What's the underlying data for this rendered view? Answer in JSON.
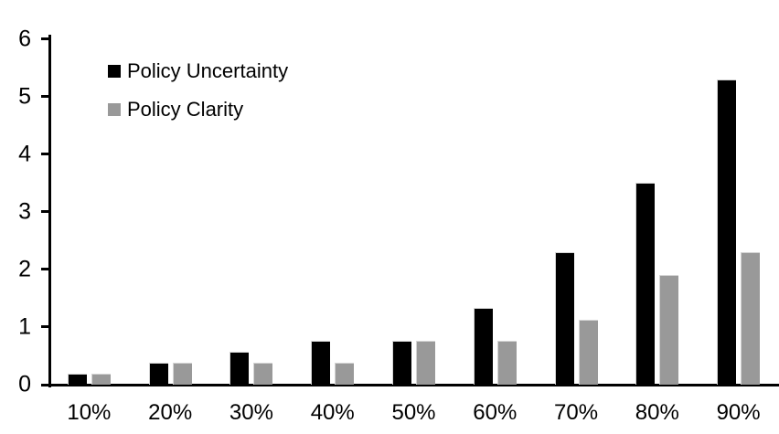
{
  "chart_data": {
    "type": "bar",
    "title": "",
    "xlabel": "",
    "ylabel": "",
    "categories": [
      "10%",
      "20%",
      "30%",
      "40%",
      "50%",
      "60%",
      "70%",
      "80%",
      "90%"
    ],
    "series": [
      {
        "name": "Policy Uncertainty",
        "color": "#000000",
        "values": [
          0.19,
          0.38,
          0.57,
          0.76,
          0.76,
          1.33,
          2.3,
          3.5,
          5.3
        ]
      },
      {
        "name": "Policy Clarity",
        "color": "#999999",
        "values": [
          0.19,
          0.38,
          0.38,
          0.38,
          0.76,
          0.76,
          1.13,
          1.9,
          2.3
        ]
      }
    ],
    "ylim": [
      0,
      6
    ],
    "yticks": [
      0,
      1,
      2,
      3,
      4,
      5,
      6
    ],
    "grid": false,
    "legend_position": "upper-left-inside",
    "axis_color": "#000000",
    "background_color": "#ffffff"
  }
}
